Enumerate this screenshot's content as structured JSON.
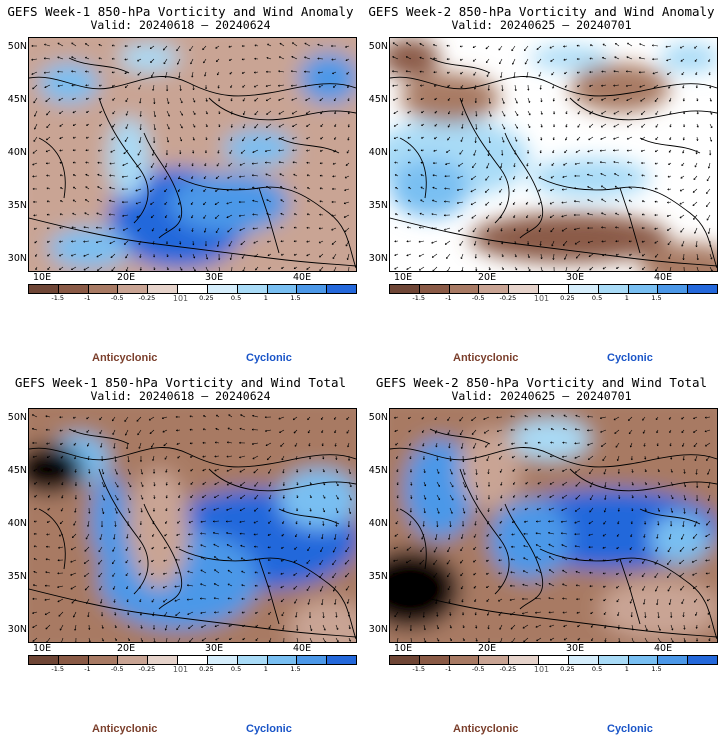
{
  "colors": {
    "anticyclonic": "#7b3f2c",
    "cyclonic": "#1a55c8",
    "scale": [
      "#6f4636",
      "#8a5a46",
      "#a87a64",
      "#c9a494",
      "#e6d3cb",
      "#ffffff",
      "#d6eefc",
      "#a9dbf7",
      "#79bff2",
      "#4c98e8",
      "#2468db"
    ]
  },
  "colorbar_ticks": [
    "-1.5",
    "-1",
    "-0.5",
    "-0.25",
    "0.25",
    "0.5",
    "1",
    "1.5"
  ],
  "page_number": "101",
  "lat_labels": [
    "50N",
    "45N",
    "40N",
    "35N",
    "30N"
  ],
  "lon_labels": [
    "10E",
    "20E",
    "30E",
    "40E"
  ],
  "legend": {
    "anticyclonic_label": "Anticyclonic",
    "cyclonic_label": "Cyclonic"
  },
  "panels": [
    {
      "title": "GEFS Week-1 850-hPa Vorticity and Wind Anomaly",
      "valid": "Valid: 20240618 – 20240624",
      "style": "anom1"
    },
    {
      "title": "GEFS Week-2 850-hPa Vorticity and Wind Anomaly",
      "valid": "Valid: 20240625 – 20240701",
      "style": "anom2"
    },
    {
      "title": "GEFS Week-1 850-hPa Vorticity and Wind Total",
      "valid": "Valid: 20240618 – 20240624",
      "style": "tot1"
    },
    {
      "title": "GEFS Week-2 850-hPa Vorticity and Wind Total",
      "valid": "Valid: 20240625 – 20240701",
      "style": "tot2"
    }
  ]
}
